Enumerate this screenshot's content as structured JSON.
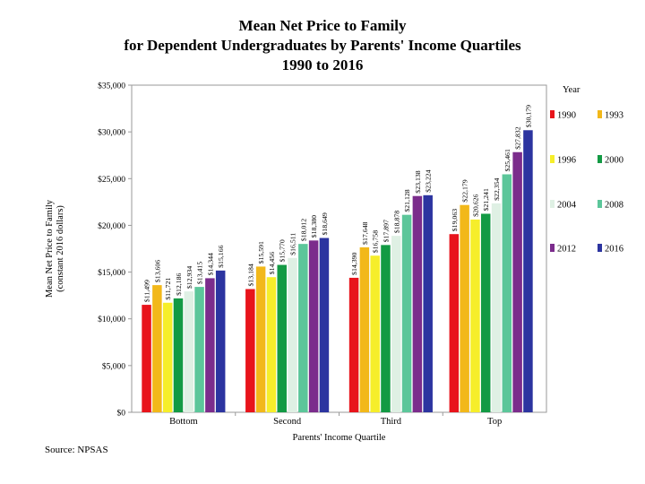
{
  "title_lines": [
    "Mean Net Price to Family",
    "for Dependent Undergraduates  by Parents' Income Quartiles",
    "1990 to 2016"
  ],
  "source": "Source: NPSAS",
  "chart_data": {
    "type": "bar",
    "title": "Mean Net Price to Family for Dependent Undergraduates by Parents' Income Quartiles 1990 to 2016",
    "xlabel": "Parents' Income Quartile",
    "ylabel": [
      "Mean Net Price to Family",
      "(constant 2016 dollars)"
    ],
    "ylim": [
      0,
      35000
    ],
    "yticks": [
      0,
      5000,
      10000,
      15000,
      20000,
      25000,
      30000,
      35000
    ],
    "ytick_labels": [
      "$0",
      "$5,000",
      "$10,000",
      "$15,000",
      "$20,000",
      "$25,000",
      "$30,000",
      "$35,000"
    ],
    "categories": [
      "Bottom",
      "Second",
      "Third",
      "Top"
    ],
    "legend_title": "Year",
    "legend_position": "right",
    "grid": false,
    "series": [
      {
        "name": "1990",
        "color": "#e8141b",
        "values": [
          11499,
          13184,
          14390,
          19063
        ],
        "labels": [
          "$11,499",
          "$13,184",
          "$14,390",
          "$19,063"
        ]
      },
      {
        "name": "1993",
        "color": "#f2b81a",
        "values": [
          13606,
          15591,
          17648,
          22179
        ],
        "labels": [
          "$13,606",
          "$15,591",
          "$17,648",
          "$22,179"
        ]
      },
      {
        "name": "1996",
        "color": "#f6ee2a",
        "values": [
          11721,
          14456,
          16758,
          20626
        ],
        "labels": [
          "$11,721",
          "$14,456",
          "$16,758",
          "$20,626"
        ]
      },
      {
        "name": "2000",
        "color": "#139a44",
        "values": [
          12186,
          15770,
          17897,
          21241
        ],
        "labels": [
          "$12,186",
          "$15,770",
          "$17,897",
          "$21,241"
        ]
      },
      {
        "name": "2004",
        "color": "#dff0e4",
        "values": [
          12934,
          16511,
          18878,
          22354
        ],
        "labels": [
          "$12,934",
          "$16,511",
          "$18,878",
          "$22,354"
        ]
      },
      {
        "name": "2008",
        "color": "#5cc69a",
        "values": [
          13415,
          18012,
          21128,
          25461
        ],
        "labels": [
          "$13,415",
          "$18,012",
          "$21,128",
          "$25,461"
        ]
      },
      {
        "name": "2012",
        "color": "#7b2c8c",
        "values": [
          14344,
          18380,
          23138,
          27832
        ],
        "labels": [
          "$14,344",
          "$18,380",
          "$23,138",
          "$27,832"
        ]
      },
      {
        "name": "2016",
        "color": "#2c34a0",
        "values": [
          15166,
          18649,
          23224,
          30179
        ],
        "labels": [
          "$15,166",
          "$18,649",
          "$23,224",
          "$30,179"
        ]
      }
    ]
  }
}
